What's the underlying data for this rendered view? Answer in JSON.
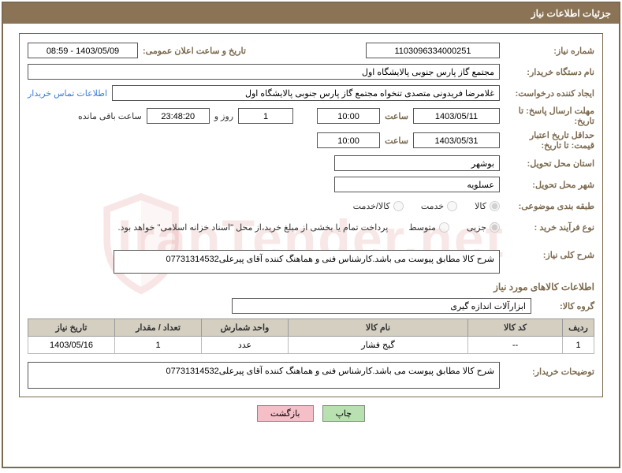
{
  "header": {
    "title": "جزئیات اطلاعات نیاز"
  },
  "fields": {
    "need_number_label": "شماره نیاز:",
    "need_number": "1103096334000251",
    "announce_label": "تاریخ و ساعت اعلان عمومی:",
    "announce_value": "1403/05/09 - 08:59",
    "buyer_org_label": "نام دستگاه خریدار:",
    "buyer_org": "مجتمع گاز پارس جنوبی  پالایشگاه اول",
    "requester_label": "ایجاد کننده درخواست:",
    "requester": "غلامرضا فریدونی متصدی تنخواه مجتمع گاز پارس جنوبی  پالایشگاه اول",
    "contact_link": "اطلاعات تماس خریدار",
    "reply_deadline_label": "مهلت ارسال پاسخ: تا تاریخ:",
    "reply_date": "1403/05/11",
    "hour_label": "ساعت",
    "reply_hour": "10:00",
    "days": "1",
    "day_and_label": "روز و",
    "countdown": "23:48:20",
    "remaining_label": "ساعت باقی مانده",
    "price_validity_label": "حداقل تاریخ اعتبار قیمت: تا تاریخ:",
    "price_date": "1403/05/31",
    "price_hour": "10:00",
    "delivery_province_label": "استان محل تحویل:",
    "delivery_province": "بوشهر",
    "delivery_city_label": "شهر محل تحویل:",
    "delivery_city": "عسلویه",
    "category_label": "طبقه بندی موضوعی:",
    "cat_goods": "کالا",
    "cat_service": "خدمت",
    "cat_goods_service": "کالا/خدمت",
    "purchase_type_label": "نوع فرآیند خرید :",
    "pt_small": "جزیی",
    "pt_medium": "متوسط",
    "treasury_note": "پرداخت تمام یا بخشی از مبلغ خرید،از محل \"اسناد خزانه اسلامی\" خواهد بود.",
    "general_desc_label": "شرح کلی نیاز:",
    "general_desc": "شرح کالا مطابق پیوست می باشد.کارشناس فنی و هماهنگ کننده آقای پیرعلی07731314532",
    "goods_info_title": "اطلاعات کالاهای مورد نیاز",
    "goods_group_label": "گروه کالا:",
    "goods_group": "ابزارآلات اندازه گیری",
    "buyer_notes_label": "توضیحات خریدار:",
    "buyer_notes": "شرح کالا مطابق پیوست می باشد.کارشناس فنی و هماهنگ کننده آقای پیرعلی07731314532"
  },
  "table": {
    "columns": [
      "ردیف",
      "کد کالا",
      "نام کالا",
      "واحد شمارش",
      "تعداد / مقدار",
      "تاریخ نیاز"
    ],
    "col_widths": [
      "40px",
      "120px",
      "auto",
      "110px",
      "110px",
      "110px"
    ],
    "rows": [
      [
        "1",
        "--",
        "گیج فشار",
        "عدد",
        "1",
        "1403/05/16"
      ]
    ]
  },
  "buttons": {
    "print": "چاپ",
    "back": "بازگشت"
  },
  "colors": {
    "brown": "#8b7355",
    "border": "#7b6a4f",
    "link": "#3b7dd8",
    "th_bg": "#d5cfc2"
  },
  "watermark": "IranTender.net"
}
